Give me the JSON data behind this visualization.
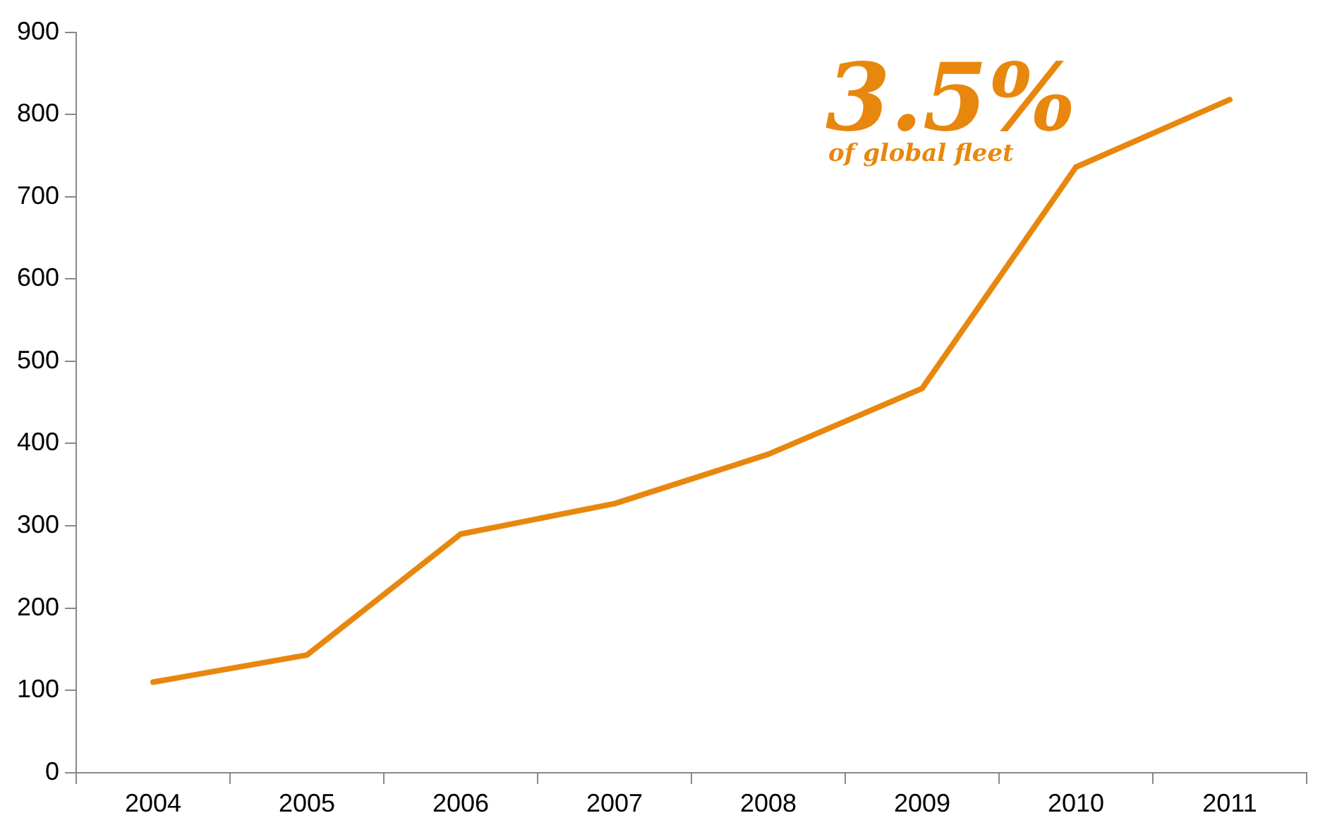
{
  "chart_data": {
    "type": "line",
    "categories": [
      "2004",
      "2005",
      "2006",
      "2007",
      "2008",
      "2009",
      "2010",
      "2011"
    ],
    "series": [
      {
        "color": "#e8870e",
        "values": [
          110,
          143,
          290,
          327,
          387,
          467,
          736,
          818
        ]
      }
    ],
    "ylim": [
      0,
      900
    ],
    "yticks": [
      0,
      100,
      200,
      300,
      400,
      500,
      600,
      700,
      800,
      900
    ],
    "grid": false,
    "legend": false,
    "marker": "none",
    "line_style": "solid",
    "annotations": [
      "3.5%",
      "of global fleet"
    ]
  }
}
